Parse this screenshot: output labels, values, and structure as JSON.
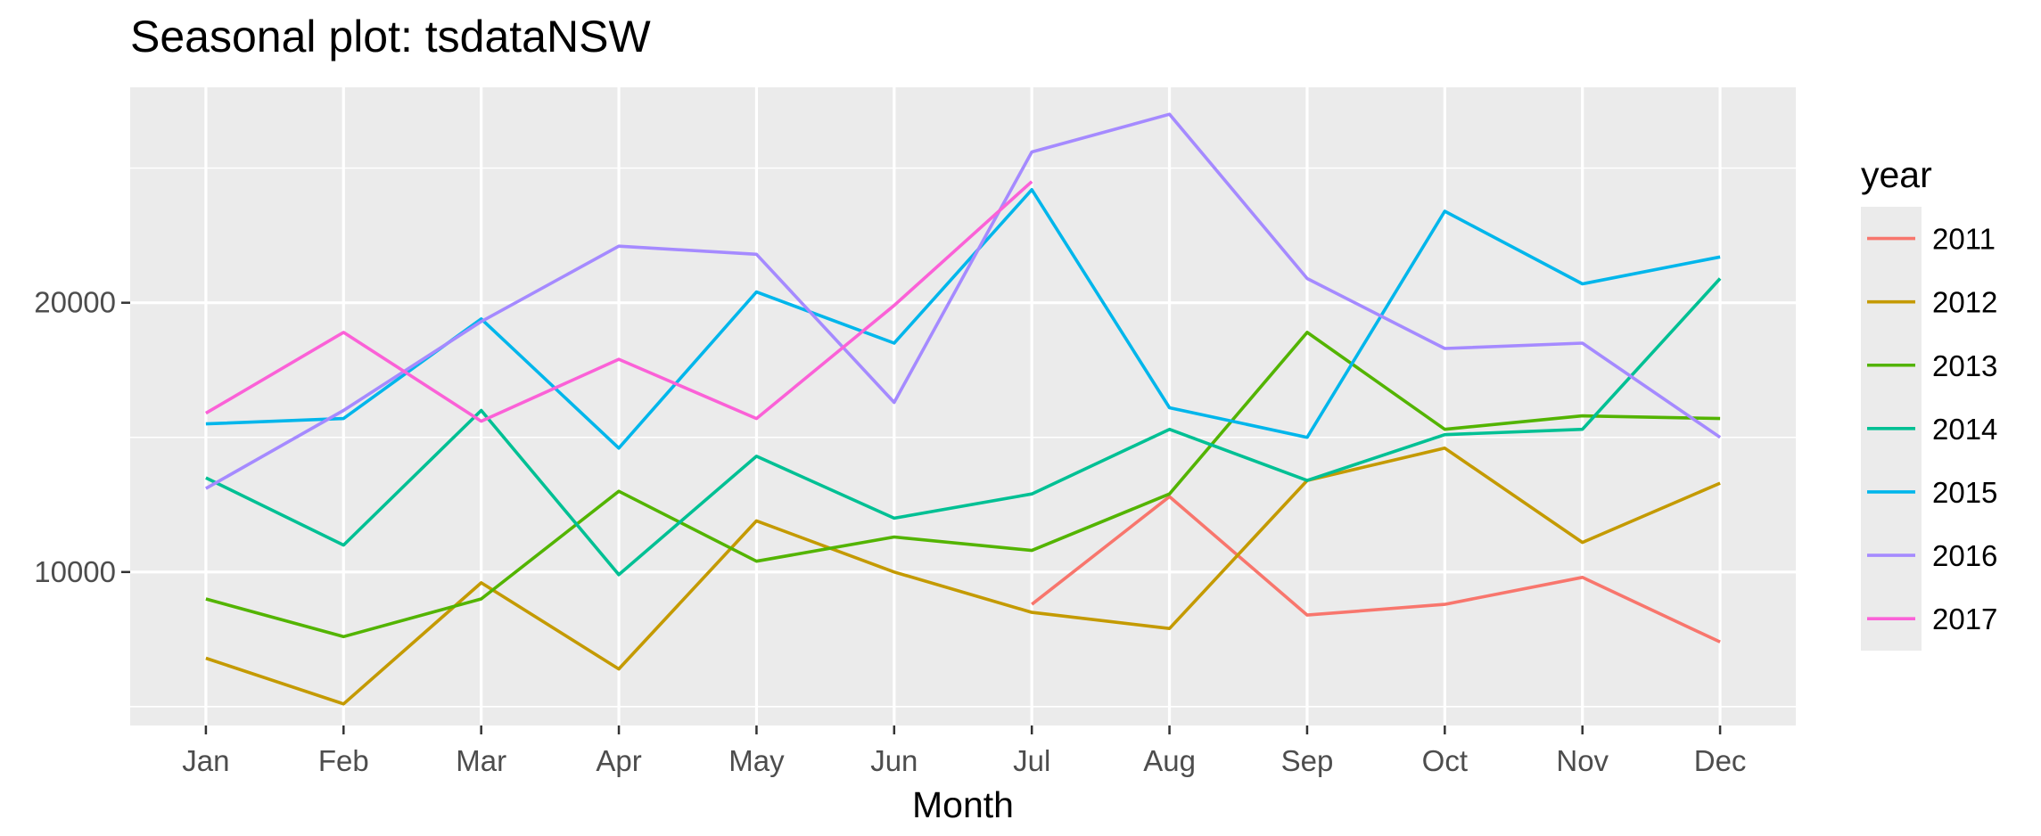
{
  "chart_data": {
    "type": "line",
    "title": "Seasonal plot: tsdataNSW",
    "xlabel": "Month",
    "ylabel": "",
    "categories": [
      "Jan",
      "Feb",
      "Mar",
      "Apr",
      "May",
      "Jun",
      "Jul",
      "Aug",
      "Sep",
      "Oct",
      "Nov",
      "Dec"
    ],
    "ylim": [
      4300,
      28000
    ],
    "y_ticks": [
      10000,
      20000
    ],
    "y_tick_labels": [
      "10000",
      "20000"
    ],
    "grid": true,
    "legend_position": "right",
    "legend_title": "year",
    "series": [
      {
        "name": "2011",
        "color": "#F8766D",
        "values": [
          null,
          null,
          null,
          null,
          null,
          null,
          8800,
          12800,
          8400,
          8800,
          9800,
          7400
        ]
      },
      {
        "name": "2012",
        "color": "#C49A00",
        "values": [
          6800,
          5100,
          9600,
          6400,
          11900,
          10000,
          8500,
          7900,
          13400,
          14600,
          11100,
          13300
        ]
      },
      {
        "name": "2013",
        "color": "#53B400",
        "values": [
          9000,
          7600,
          9000,
          13000,
          10400,
          11300,
          10800,
          12900,
          18900,
          15300,
          15800,
          15700
        ]
      },
      {
        "name": "2014",
        "color": "#00C094",
        "values": [
          13500,
          11000,
          16000,
          9900,
          14300,
          12000,
          12900,
          15300,
          13400,
          15100,
          15300,
          20900
        ]
      },
      {
        "name": "2015",
        "color": "#00B6EB",
        "values": [
          15500,
          15700,
          19400,
          14600,
          20400,
          18500,
          24200,
          16100,
          15000,
          23400,
          20700,
          21700
        ]
      },
      {
        "name": "2016",
        "color": "#A58AFF",
        "values": [
          13100,
          16000,
          19300,
          22100,
          21800,
          16300,
          25600,
          27000,
          20900,
          18300,
          18500,
          15000
        ]
      },
      {
        "name": "2017",
        "color": "#FB61D7",
        "values": [
          15900,
          18900,
          15600,
          17900,
          15700,
          19900,
          24500,
          null,
          null,
          null,
          null,
          null
        ]
      }
    ]
  }
}
